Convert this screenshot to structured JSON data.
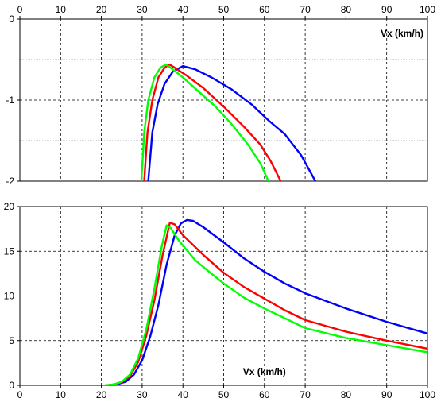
{
  "chart_data": [
    {
      "type": "line",
      "x_axis_position": "top",
      "xlim": [
        0,
        100
      ],
      "ylim": [
        -2,
        0
      ],
      "xticks": [
        0,
        10,
        20,
        30,
        40,
        50,
        60,
        70,
        80,
        90,
        100
      ],
      "yticks": [
        0,
        -1,
        -2
      ],
      "ytick_labels": [
        "0",
        "-1",
        "-2"
      ],
      "minor_y_gridlines": [
        -0.5,
        -1.5
      ],
      "grid": true,
      "xlabel": "Vx (km/h)",
      "xlabel_placement": "top-right",
      "ylabel": "",
      "title": "",
      "series": [
        {
          "color": "#0000ff",
          "points": [
            [
              31.5,
              -2.0
            ],
            [
              32.5,
              -1.4
            ],
            [
              33.8,
              -1.05
            ],
            [
              35.5,
              -0.8
            ],
            [
              37.5,
              -0.65
            ],
            [
              40.0,
              -0.58
            ],
            [
              43.0,
              -0.62
            ],
            [
              47.0,
              -0.72
            ],
            [
              52.0,
              -0.87
            ],
            [
              57.0,
              -1.06
            ],
            [
              61.0,
              -1.25
            ],
            [
              65.0,
              -1.42
            ],
            [
              69.0,
              -1.68
            ],
            [
              72.5,
              -2.0
            ]
          ]
        },
        {
          "color": "#ff0000",
          "points": [
            [
              30.5,
              -2.0
            ],
            [
              31.3,
              -1.4
            ],
            [
              32.5,
              -1.0
            ],
            [
              34.0,
              -0.72
            ],
            [
              35.5,
              -0.6
            ],
            [
              36.7,
              -0.56
            ],
            [
              38.0,
              -0.6
            ],
            [
              41.0,
              -0.7
            ],
            [
              45.0,
              -0.85
            ],
            [
              50.0,
              -1.08
            ],
            [
              55.0,
              -1.33
            ],
            [
              59.0,
              -1.55
            ],
            [
              61.5,
              -1.75
            ],
            [
              64.0,
              -2.0
            ]
          ]
        },
        {
          "color": "#00ff00",
          "points": [
            [
              29.8,
              -2.0
            ],
            [
              30.5,
              -1.4
            ],
            [
              31.5,
              -1.0
            ],
            [
              33.0,
              -0.72
            ],
            [
              34.5,
              -0.6
            ],
            [
              35.8,
              -0.56
            ],
            [
              37.0,
              -0.6
            ],
            [
              40.0,
              -0.72
            ],
            [
              44.0,
              -0.9
            ],
            [
              48.0,
              -1.08
            ],
            [
              52.0,
              -1.3
            ],
            [
              56.0,
              -1.55
            ],
            [
              59.0,
              -1.78
            ],
            [
              61.0,
              -2.0
            ]
          ]
        }
      ]
    },
    {
      "type": "line",
      "x_axis_position": "bottom",
      "xlim": [
        0,
        100
      ],
      "ylim": [
        0,
        20
      ],
      "xticks": [
        0,
        10,
        20,
        30,
        40,
        50,
        60,
        70,
        80,
        90,
        100
      ],
      "yticks": [
        0,
        5,
        10,
        15,
        20
      ],
      "ytick_labels": [
        "0",
        "5",
        "10",
        "15",
        "20"
      ],
      "grid": true,
      "xlabel": "Vx (km/h)",
      "xlabel_placement": "bottom-center",
      "ylabel": "",
      "title": "",
      "series": [
        {
          "color": "#0000ff",
          "points": [
            [
              21.5,
              0
            ],
            [
              24.0,
              0.15
            ],
            [
              26.0,
              0.4
            ],
            [
              28.0,
              1.2
            ],
            [
              30.0,
              2.8
            ],
            [
              32.0,
              5.5
            ],
            [
              34.0,
              9.0
            ],
            [
              36.0,
              13.5
            ],
            [
              38.0,
              16.8
            ],
            [
              39.5,
              18.1
            ],
            [
              41.0,
              18.5
            ],
            [
              42.5,
              18.4
            ],
            [
              45.0,
              17.7
            ],
            [
              50.0,
              16.0
            ],
            [
              55.0,
              14.2
            ],
            [
              60.0,
              12.7
            ],
            [
              65.0,
              11.4
            ],
            [
              70.0,
              10.3
            ],
            [
              80.0,
              8.6
            ],
            [
              90.0,
              7.1
            ],
            [
              100.0,
              5.8
            ]
          ]
        },
        {
          "color": "#ff0000",
          "points": [
            [
              21.0,
              0
            ],
            [
              23.0,
              0.1
            ],
            [
              25.0,
              0.35
            ],
            [
              27.0,
              1.0
            ],
            [
              29.0,
              2.6
            ],
            [
              31.0,
              5.5
            ],
            [
              33.0,
              9.5
            ],
            [
              35.0,
              14.5
            ],
            [
              36.8,
              18.2
            ],
            [
              38.0,
              18.0
            ],
            [
              40.0,
              16.8
            ],
            [
              45.0,
              14.6
            ],
            [
              50.0,
              12.6
            ],
            [
              55.0,
              11.0
            ],
            [
              60.0,
              9.7
            ],
            [
              65.0,
              8.4
            ],
            [
              70.0,
              7.3
            ],
            [
              80.0,
              6.0
            ],
            [
              90.0,
              5.0
            ],
            [
              100.0,
              4.1
            ]
          ]
        },
        {
          "color": "#00ff00",
          "points": [
            [
              21.0,
              0
            ],
            [
              23.0,
              0.1
            ],
            [
              25.0,
              0.4
            ],
            [
              27.0,
              1.2
            ],
            [
              29.0,
              3.0
            ],
            [
              31.0,
              6.2
            ],
            [
              33.0,
              10.8
            ],
            [
              34.8,
              15.5
            ],
            [
              36.0,
              17.9
            ],
            [
              37.0,
              17.6
            ],
            [
              39.0,
              16.2
            ],
            [
              43.0,
              14.0
            ],
            [
              47.0,
              12.5
            ],
            [
              50.0,
              11.4
            ],
            [
              55.0,
              9.8
            ],
            [
              60.0,
              8.6
            ],
            [
              65.0,
              7.5
            ],
            [
              70.0,
              6.4
            ],
            [
              80.0,
              5.3
            ],
            [
              90.0,
              4.5
            ],
            [
              100.0,
              3.7
            ]
          ]
        }
      ]
    }
  ]
}
